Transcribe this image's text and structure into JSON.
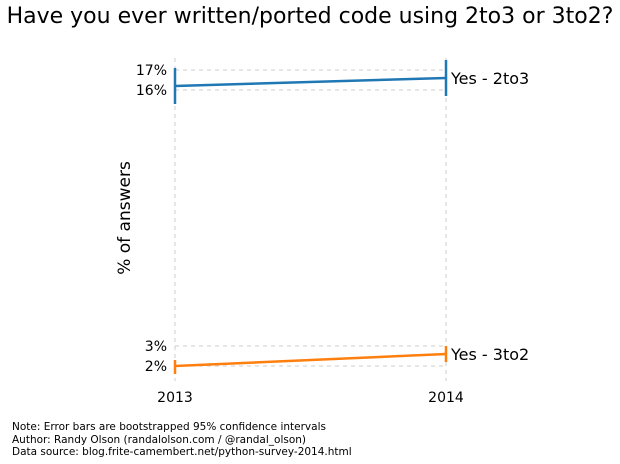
{
  "title": "Have you ever written/ported code using 2to3 or 3to2?",
  "chart_data": {
    "type": "line",
    "title": "Have you ever written/ported code using 2to3 or 3to2?",
    "xlabel": "",
    "ylabel": "% of answers",
    "x": [
      "2013",
      "2014"
    ],
    "y_ticks": [
      "2%",
      "3%",
      "16%",
      "17%"
    ],
    "grid": true,
    "series": [
      {
        "name": "Yes - 2to3",
        "color": "#1f77b4",
        "values": [
          16.2,
          16.6
        ],
        "ci_low": [
          15.3,
          15.7
        ],
        "ci_high": [
          17.1,
          17.5
        ]
      },
      {
        "name": "Yes - 3to2",
        "color": "#ff7f0e",
        "values": [
          2.0,
          2.6
        ],
        "ci_low": [
          1.6,
          2.2
        ],
        "ci_high": [
          2.3,
          3.0
        ]
      }
    ]
  },
  "footnotes": [
    "Note: Error bars are bootstrapped 95% confidence intervals",
    "Author: Randy Olson (randalolson.com / @randal_olson)",
    "Data source: blog.frite-camembert.net/python-survey-2014.html"
  ]
}
